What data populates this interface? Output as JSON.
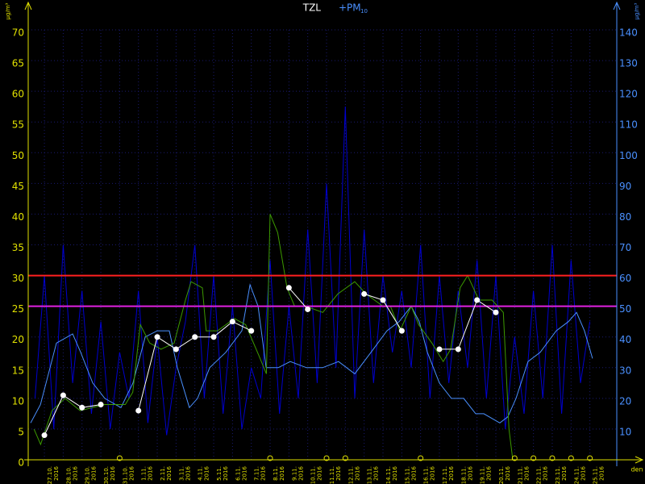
{
  "chart_data": {
    "type": "line",
    "title_left": "TZL",
    "title_right": "+PM",
    "title_subscript": "10",
    "y_unit": "µg/m³",
    "y2_unit": "µg/m³",
    "xlabel": "den",
    "categories": [
      "27.10. 2016",
      "28.10. 2016",
      "29.10. 2016",
      "30.10. 2016",
      "31.10. 2016",
      "1.11. 2016",
      "2.11. 2016",
      "3.11. 2016",
      "4.11. 2016",
      "5.11. 2016",
      "6.11. 2016",
      "7.11. 2016",
      "8.11. 2016",
      "9.11. 2016",
      "10.11. 2016",
      "11.11. 2016",
      "12.11. 2016",
      "13.11. 2016",
      "14.11. 2016",
      "15.11. 2016",
      "16.11. 2016",
      "17.11. 2016",
      "18.11. 2016",
      "19.11. 2016",
      "20.11. 2016",
      "21.11. 2016",
      "22.11. 2016",
      "23.11. 2016",
      "24.11. 2016",
      "25.11. 2016"
    ],
    "xlim": [
      -0.86,
      30.43
    ],
    "ylim": [
      0,
      70
    ],
    "yticks": [
      0,
      5,
      10,
      15,
      20,
      25,
      30,
      35,
      40,
      45,
      50,
      55,
      60,
      65,
      70
    ],
    "y2lim": [
      0,
      140
    ],
    "y2ticks": [
      10,
      20,
      30,
      40,
      50,
      60,
      70,
      80,
      90,
      100,
      110,
      120,
      130,
      140
    ],
    "grid": true,
    "limits": [
      {
        "value": 30,
        "color": "#ff2020"
      },
      {
        "value": 25,
        "color": "#e020e0"
      }
    ],
    "daily": {
      "color": "#ffffff",
      "values": [
        4,
        10.5,
        8.5,
        9,
        null,
        8,
        20,
        18,
        20,
        20,
        22.5,
        21,
        null,
        28,
        24.5,
        null,
        null,
        27,
        26,
        21,
        null,
        18,
        18,
        26,
        24,
        null,
        null,
        null,
        null,
        null
      ]
    },
    "series": [
      {
        "color": "#0000d0",
        "axis": "y2",
        "x": [
          -0.5,
          0,
          0.5,
          1,
          1.5,
          2,
          2.5,
          3,
          3.5,
          4,
          4.5,
          5,
          5.5,
          6,
          6.5,
          7,
          7.5,
          8,
          8.5,
          9,
          9.5,
          10,
          10.5,
          11,
          11.5,
          12,
          12.5,
          13,
          13.5,
          14,
          14.5,
          15,
          15.5,
          16,
          16.5,
          17,
          17.5,
          18,
          18.5,
          19,
          19.5,
          20,
          20.5,
          21,
          21.5,
          22,
          22.5,
          23,
          23.5,
          24,
          24.5,
          25,
          25.5,
          26,
          26.5,
          27,
          27.5,
          28,
          28.5,
          29
        ],
        "values": [
          20,
          60,
          10,
          70,
          25,
          55,
          15,
          45,
          10,
          35,
          20,
          55,
          12,
          40,
          8,
          30,
          45,
          70,
          20,
          60,
          15,
          50,
          10,
          30,
          20,
          65,
          15,
          50,
          20,
          75,
          25,
          90,
          30,
          115,
          20,
          75,
          25,
          60,
          35,
          55,
          30,
          70,
          20,
          60,
          25,
          55,
          30,
          65,
          20,
          60,
          10,
          40,
          15,
          55,
          20,
          70,
          15,
          65,
          25,
          45
        ]
      },
      {
        "color": "#4a90ff",
        "axis": "y2",
        "x": [
          -0.73,
          -0.21,
          0.64,
          1.5,
          1.93,
          2.57,
          3.21,
          4.07,
          4.71,
          5.36,
          6.0,
          6.64,
          7.07,
          7.71,
          8.14,
          8.79,
          9.64,
          10.5,
          10.93,
          11.36,
          11.79,
          12.43,
          13.07,
          13.93,
          14.79,
          15.64,
          16.5,
          17.36,
          18.21,
          18.86,
          19.5,
          19.93,
          20.36,
          21.0,
          21.64,
          22.29,
          22.93,
          23.36,
          24.21,
          24.64,
          25.07,
          25.71,
          26.36,
          27.21,
          27.86,
          28.29,
          28.71,
          29.14
        ],
        "values": [
          12,
          18,
          38,
          41,
          35,
          25,
          20,
          17,
          25,
          40,
          42,
          42,
          30,
          17,
          20,
          30,
          35,
          42,
          57,
          50,
          30,
          30,
          32,
          30,
          30,
          32,
          28,
          35,
          42,
          45,
          50,
          45,
          35,
          25,
          20,
          20,
          15,
          15,
          12,
          14,
          20,
          32,
          35,
          42,
          45,
          48,
          42,
          33
        ]
      },
      {
        "color": "#3c9a00",
        "axis": "y",
        "x": [
          -0.55,
          -0.2,
          0.4,
          1.1,
          1.9,
          3.2,
          4.3,
          4.7,
          5.1,
          5.6,
          6.2,
          6.9,
          7.5,
          7.8,
          8.4,
          8.6,
          9.2,
          10.1,
          10.7,
          11.4,
          11.8,
          12.0,
          12.4,
          12.9,
          13.3,
          13.9,
          14.8,
          15.6,
          16.5,
          17.1,
          18.0,
          18.4,
          18.9,
          19.5,
          19.9,
          20.6,
          21.2,
          21.6,
          22.1,
          22.5,
          23.1,
          23.8,
          24.4,
          24.7,
          24.9
        ],
        "values": [
          5,
          2.5,
          8,
          10,
          8,
          9,
          9,
          11,
          22,
          19,
          18,
          19,
          26,
          29,
          28,
          21,
          21,
          23,
          22,
          17,
          14,
          40,
          37,
          28,
          25,
          25,
          24,
          27,
          29,
          27,
          25,
          25,
          21,
          25,
          22,
          19,
          16,
          18,
          28,
          30,
          26,
          26,
          24,
          5,
          0
        ]
      }
    ]
  }
}
